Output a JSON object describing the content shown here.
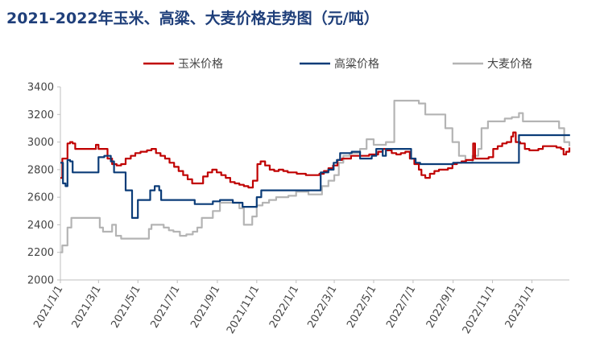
{
  "chart_data": {
    "type": "line",
    "title": "2021-2022年玉米、高粱、大麦价格走势图（元/吨）",
    "xlabel": "",
    "ylabel": "",
    "ylim": [
      2000,
      3400
    ],
    "yticks": [
      "2000",
      "2200",
      "2400",
      "2600",
      "2800",
      "3000",
      "3200",
      "3400"
    ],
    "xticks": [
      "2021/1/1",
      "2021/3/1",
      "2021/5/1",
      "2021/7/1",
      "2021/9/1",
      "2021/11/1",
      "2022/1/1",
      "2022/3/1",
      "2022/5/1",
      "2022/7/1",
      "2022/9/1",
      "2022/11/1",
      "2023/1/1"
    ],
    "legend_position": "top",
    "grid": false,
    "series": [
      {
        "name": "玉米价格",
        "color": "#c00000",
        "points": [
          [
            "2021/1/1",
            2740
          ],
          [
            "2021/1/4",
            2880
          ],
          [
            "2021/1/8",
            2880
          ],
          [
            "2021/1/12",
            2990
          ],
          [
            "2021/1/16",
            3000
          ],
          [
            "2021/1/20",
            2990
          ],
          [
            "2021/1/24",
            2950
          ],
          [
            "2021/2/1",
            2950
          ],
          [
            "2021/2/10",
            2950
          ],
          [
            "2021/2/20",
            2950
          ],
          [
            "2021/2/25",
            2980
          ],
          [
            "2021/3/1",
            2950
          ],
          [
            "2021/3/8",
            2950
          ],
          [
            "2021/3/15",
            2880
          ],
          [
            "2021/3/22",
            2840
          ],
          [
            "2021/3/29",
            2830
          ],
          [
            "2021/4/5",
            2840
          ],
          [
            "2021/4/12",
            2880
          ],
          [
            "2021/4/20",
            2900
          ],
          [
            "2021/4/27",
            2920
          ],
          [
            "2021/5/5",
            2930
          ],
          [
            "2021/5/15",
            2940
          ],
          [
            "2021/5/22",
            2950
          ],
          [
            "2021/5/29",
            2920
          ],
          [
            "2021/6/5",
            2900
          ],
          [
            "2021/6/12",
            2880
          ],
          [
            "2021/6/19",
            2850
          ],
          [
            "2021/6/26",
            2820
          ],
          [
            "2021/7/3",
            2790
          ],
          [
            "2021/7/10",
            2760
          ],
          [
            "2021/7/17",
            2730
          ],
          [
            "2021/7/24",
            2700
          ],
          [
            "2021/8/1",
            2700
          ],
          [
            "2021/8/10",
            2750
          ],
          [
            "2021/8/17",
            2780
          ],
          [
            "2021/8/24",
            2800
          ],
          [
            "2021/8/31",
            2780
          ],
          [
            "2021/9/7",
            2760
          ],
          [
            "2021/9/14",
            2740
          ],
          [
            "2021/9/21",
            2710
          ],
          [
            "2021/9/28",
            2700
          ],
          [
            "2021/10/5",
            2690
          ],
          [
            "2021/10/12",
            2680
          ],
          [
            "2021/10/19",
            2670
          ],
          [
            "2021/10/26",
            2720
          ],
          [
            "2021/11/2",
            2840
          ],
          [
            "2021/11/7",
            2860
          ],
          [
            "2021/11/14",
            2830
          ],
          [
            "2021/11/21",
            2800
          ],
          [
            "2021/11/28",
            2790
          ],
          [
            "2021/12/5",
            2800
          ],
          [
            "2021/12/12",
            2790
          ],
          [
            "2021/12/19",
            2780
          ],
          [
            "2021/12/26",
            2780
          ],
          [
            "2022/1/2",
            2770
          ],
          [
            "2022/1/9",
            2770
          ],
          [
            "2022/1/16",
            2760
          ],
          [
            "2022/1/23",
            2760
          ],
          [
            "2022/1/30",
            2760
          ],
          [
            "2022/2/6",
            2770
          ],
          [
            "2022/2/13",
            2790
          ],
          [
            "2022/2/20",
            2810
          ],
          [
            "2022/2/27",
            2830
          ],
          [
            "2022/3/6",
            2870
          ],
          [
            "2022/3/13",
            2880
          ],
          [
            "2022/3/20",
            2880
          ],
          [
            "2022/3/27",
            2900
          ],
          [
            "2022/4/3",
            2900
          ],
          [
            "2022/4/10",
            2900
          ],
          [
            "2022/4/17",
            2900
          ],
          [
            "2022/4/24",
            2910
          ],
          [
            "2022/5/1",
            2910
          ],
          [
            "2022/5/8",
            2930
          ],
          [
            "2022/5/15",
            2950
          ],
          [
            "2022/5/22",
            2940
          ],
          [
            "2022/5/29",
            2920
          ],
          [
            "2022/6/5",
            2910
          ],
          [
            "2022/6/12",
            2920
          ],
          [
            "2022/6/19",
            2930
          ],
          [
            "2022/6/26",
            2880
          ],
          [
            "2022/7/3",
            2840
          ],
          [
            "2022/7/10",
            2800
          ],
          [
            "2022/7/14",
            2760
          ],
          [
            "2022/7/20",
            2740
          ],
          [
            "2022/7/27",
            2770
          ],
          [
            "2022/8/3",
            2790
          ],
          [
            "2022/8/10",
            2800
          ],
          [
            "2022/8/17",
            2800
          ],
          [
            "2022/8/24",
            2810
          ],
          [
            "2022/8/31",
            2840
          ],
          [
            "2022/9/7",
            2850
          ],
          [
            "2022/9/14",
            2860
          ],
          [
            "2022/9/21",
            2870
          ],
          [
            "2022/9/28",
            2870
          ],
          [
            "2022/10/2",
            2990
          ],
          [
            "2022/10/5",
            2880
          ],
          [
            "2022/10/12",
            2880
          ],
          [
            "2022/10/19",
            2880
          ],
          [
            "2022/10/26",
            2890
          ],
          [
            "2022/11/2",
            2950
          ],
          [
            "2022/11/9",
            2970
          ],
          [
            "2022/11/16",
            2990
          ],
          [
            "2022/11/23",
            3000
          ],
          [
            "2022/11/30",
            3040
          ],
          [
            "2022/12/3",
            3070
          ],
          [
            "2022/12/7",
            3000
          ],
          [
            "2022/12/14",
            2990
          ],
          [
            "2022/12/21",
            2950
          ],
          [
            "2022/12/28",
            2940
          ],
          [
            "2023/1/4",
            2940
          ],
          [
            "2023/1/11",
            2950
          ],
          [
            "2023/1/18",
            2970
          ],
          [
            "2023/1/25",
            2970
          ],
          [
            "2023/2/1",
            2970
          ],
          [
            "2023/2/8",
            2960
          ],
          [
            "2023/2/15",
            2950
          ],
          [
            "2023/2/19",
            2910
          ],
          [
            "2023/2/23",
            2930
          ],
          [
            "2023/2/28",
            2960
          ]
        ]
      },
      {
        "name": "高粱价格",
        "color": "#0b3c78",
        "points": [
          [
            "2021/1/1",
            2850
          ],
          [
            "2021/1/5",
            2700
          ],
          [
            "2021/1/9",
            2680
          ],
          [
            "2021/1/12",
            2870
          ],
          [
            "2021/1/16",
            2860
          ],
          [
            "2021/1/20",
            2780
          ],
          [
            "2021/2/10",
            2780
          ],
          [
            "2021/2/28",
            2780
          ],
          [
            "2021/3/1",
            2890
          ],
          [
            "2021/3/10",
            2900
          ],
          [
            "2021/3/20",
            2860
          ],
          [
            "2021/3/25",
            2780
          ],
          [
            "2021/4/5",
            2780
          ],
          [
            "2021/4/12",
            2650
          ],
          [
            "2021/4/20",
            2650
          ],
          [
            "2021/4/22",
            2450
          ],
          [
            "2021/4/29",
            2450
          ],
          [
            "2021/5/1",
            2580
          ],
          [
            "2021/5/15",
            2580
          ],
          [
            "2021/5/20",
            2650
          ],
          [
            "2021/5/27",
            2680
          ],
          [
            "2021/6/3",
            2650
          ],
          [
            "2021/6/6",
            2580
          ],
          [
            "2021/7/1",
            2580
          ],
          [
            "2021/7/20",
            2580
          ],
          [
            "2021/7/28",
            2550
          ],
          [
            "2021/8/15",
            2550
          ],
          [
            "2021/8/25",
            2570
          ],
          [
            "2021/9/5",
            2580
          ],
          [
            "2021/9/15",
            2580
          ],
          [
            "2021/9/25",
            2560
          ],
          [
            "2021/10/1",
            2560
          ],
          [
            "2021/10/10",
            2530
          ],
          [
            "2021/10/25",
            2530
          ],
          [
            "2021/11/1",
            2600
          ],
          [
            "2021/11/8",
            2650
          ],
          [
            "2021/12/1",
            2650
          ],
          [
            "2021/12/20",
            2650
          ],
          [
            "2022/1/5",
            2650
          ],
          [
            "2022/1/20",
            2650
          ],
          [
            "2022/2/1",
            2650
          ],
          [
            "2022/2/8",
            2780
          ],
          [
            "2022/2/20",
            2800
          ],
          [
            "2022/2/28",
            2850
          ],
          [
            "2022/3/5",
            2870
          ],
          [
            "2022/3/10",
            2920
          ],
          [
            "2022/3/20",
            2920
          ],
          [
            "2022/3/28",
            2930
          ],
          [
            "2022/4/10",
            2880
          ],
          [
            "2022/4/20",
            2880
          ],
          [
            "2022/4/28",
            2900
          ],
          [
            "2022/5/5",
            2950
          ],
          [
            "2022/5/15",
            2900
          ],
          [
            "2022/5/20",
            2950
          ],
          [
            "2022/6/1",
            2950
          ],
          [
            "2022/6/20",
            2950
          ],
          [
            "2022/6/28",
            2880
          ],
          [
            "2022/7/5",
            2850
          ],
          [
            "2022/7/12",
            2840
          ],
          [
            "2022/8/1",
            2840
          ],
          [
            "2022/8/20",
            2840
          ],
          [
            "2022/9/1",
            2850
          ],
          [
            "2022/9/10",
            2850
          ],
          [
            "2022/10/1",
            2850
          ],
          [
            "2022/11/1",
            2850
          ],
          [
            "2022/11/20",
            2850
          ],
          [
            "2022/12/10",
            2850
          ],
          [
            "2022/12/12",
            3050
          ],
          [
            "2023/1/1",
            3050
          ],
          [
            "2023/2/1",
            3050
          ],
          [
            "2023/3/1",
            3050
          ]
        ]
      },
      {
        "name": "大麦价格",
        "color": "#b4b4b4",
        "points": [
          [
            "2021/1/1",
            2200
          ],
          [
            "2021/1/4",
            2250
          ],
          [
            "2021/1/10",
            2250
          ],
          [
            "2021/1/12",
            2380
          ],
          [
            "2021/1/18",
            2450
          ],
          [
            "2021/2/10",
            2450
          ],
          [
            "2021/3/1",
            2450
          ],
          [
            "2021/3/3",
            2380
          ],
          [
            "2021/3/8",
            2350
          ],
          [
            "2021/3/16",
            2350
          ],
          [
            "2021/3/22",
            2400
          ],
          [
            "2021/3/28",
            2320
          ],
          [
            "2021/4/5",
            2300
          ],
          [
            "2021/5/1",
            2300
          ],
          [
            "2021/5/15",
            2300
          ],
          [
            "2021/5/18",
            2370
          ],
          [
            "2021/5/22",
            2400
          ],
          [
            "2021/6/1",
            2400
          ],
          [
            "2021/6/10",
            2380
          ],
          [
            "2021/6/18",
            2360
          ],
          [
            "2021/6/25",
            2350
          ],
          [
            "2021/7/5",
            2320
          ],
          [
            "2021/7/15",
            2330
          ],
          [
            "2021/7/25",
            2350
          ],
          [
            "2021/8/1",
            2380
          ],
          [
            "2021/8/8",
            2450
          ],
          [
            "2021/8/20",
            2450
          ],
          [
            "2021/8/25",
            2500
          ],
          [
            "2021/9/5",
            2560
          ],
          [
            "2021/9/15",
            2560
          ],
          [
            "2021/9/28",
            2560
          ],
          [
            "2021/10/5",
            2520
          ],
          [
            "2021/10/12",
            2400
          ],
          [
            "2021/10/20",
            2400
          ],
          [
            "2021/10/25",
            2460
          ],
          [
            "2021/11/1",
            2540
          ],
          [
            "2021/11/10",
            2560
          ],
          [
            "2021/11/20",
            2580
          ],
          [
            "2021/12/1",
            2600
          ],
          [
            "2021/12/10",
            2600
          ],
          [
            "2021/12/20",
            2610
          ],
          [
            "2022/1/1",
            2640
          ],
          [
            "2022/1/10",
            2640
          ],
          [
            "2022/1/20",
            2620
          ],
          [
            "2022/2/1",
            2620
          ],
          [
            "2022/2/10",
            2680
          ],
          [
            "2022/2/20",
            2720
          ],
          [
            "2022/3/1",
            2760
          ],
          [
            "2022/3/8",
            2850
          ],
          [
            "2022/3/15",
            2900
          ],
          [
            "2022/3/25",
            2920
          ],
          [
            "2022/4/10",
            2950
          ],
          [
            "2022/4/20",
            3020
          ],
          [
            "2022/5/1",
            2980
          ],
          [
            "2022/5/10",
            2980
          ],
          [
            "2022/5/20",
            3000
          ],
          [
            "2022/6/1",
            3000
          ],
          [
            "2022/6/2",
            3300
          ],
          [
            "2022/6/20",
            3300
          ],
          [
            "2022/7/10",
            3280
          ],
          [
            "2022/7/20",
            3200
          ],
          [
            "2022/8/10",
            3200
          ],
          [
            "2022/8/20",
            3100
          ],
          [
            "2022/8/31",
            3000
          ],
          [
            "2022/9/10",
            2900
          ],
          [
            "2022/9/20",
            2850
          ],
          [
            "2022/10/1",
            2900
          ],
          [
            "2022/10/10",
            2950
          ],
          [
            "2022/10/15",
            3100
          ],
          [
            "2022/10/25",
            3150
          ],
          [
            "2022/11/10",
            3150
          ],
          [
            "2022/11/20",
            3170
          ],
          [
            "2022/12/1",
            3180
          ],
          [
            "2022/12/10",
            3180
          ],
          [
            "2022/12/12",
            3210
          ],
          [
            "2022/12/18",
            3150
          ],
          [
            "2023/1/1",
            3150
          ],
          [
            "2023/1/20",
            3150
          ],
          [
            "2023/2/5",
            3150
          ],
          [
            "2023/2/12",
            3100
          ],
          [
            "2023/2/20",
            3000
          ],
          [
            "2023/2/28",
            2970
          ]
        ]
      }
    ]
  }
}
